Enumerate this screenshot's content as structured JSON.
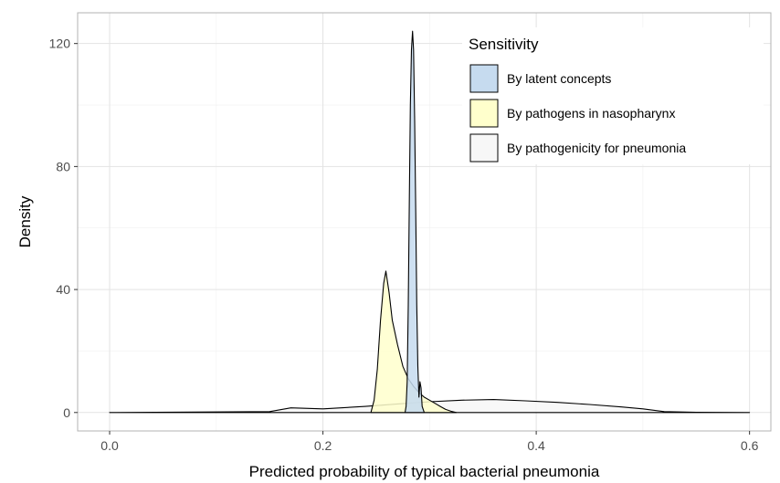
{
  "chart_data": {
    "type": "density",
    "title": "",
    "xlabel": "Predicted probability of typical bacterial pneumonia",
    "ylabel": "Density",
    "xlim": [
      -0.03,
      0.62
    ],
    "ylim": [
      -6,
      130
    ],
    "x_ticks": [
      0.0,
      0.2,
      0.4,
      0.6
    ],
    "x_tick_labels": [
      "0.0",
      "0.2",
      "0.4",
      "0.6"
    ],
    "y_ticks": [
      0,
      40,
      80,
      120
    ],
    "y_tick_labels": [
      "0",
      "40",
      "80",
      "120"
    ],
    "grid": true,
    "legend": {
      "title": "Sensitivity",
      "position": "top-right"
    },
    "series": [
      {
        "name": "By pathogenicity for pneumonia",
        "color": "#f7f7f7",
        "points": [
          [
            0.0,
            0
          ],
          [
            0.15,
            0.3
          ],
          [
            0.17,
            1.5
          ],
          [
            0.2,
            1.2
          ],
          [
            0.24,
            2.0
          ],
          [
            0.27,
            2.8
          ],
          [
            0.3,
            3.5
          ],
          [
            0.33,
            4.0
          ],
          [
            0.36,
            4.2
          ],
          [
            0.39,
            3.8
          ],
          [
            0.42,
            3.3
          ],
          [
            0.45,
            2.6
          ],
          [
            0.48,
            1.8
          ],
          [
            0.5,
            1.2
          ],
          [
            0.52,
            0.3
          ],
          [
            0.55,
            0.05
          ],
          [
            0.6,
            0
          ]
        ]
      },
      {
        "name": "By pathogens in nasopharynx",
        "color": "#ffffcc",
        "points": [
          [
            0.245,
            0
          ],
          [
            0.248,
            4
          ],
          [
            0.251,
            14
          ],
          [
            0.254,
            30
          ],
          [
            0.257,
            42
          ],
          [
            0.259,
            46
          ],
          [
            0.262,
            39
          ],
          [
            0.265,
            30
          ],
          [
            0.27,
            22
          ],
          [
            0.275,
            15
          ],
          [
            0.28,
            11
          ],
          [
            0.285,
            8.5
          ],
          [
            0.29,
            6.5
          ],
          [
            0.295,
            5
          ],
          [
            0.3,
            4
          ],
          [
            0.305,
            3
          ],
          [
            0.31,
            2
          ],
          [
            0.315,
            1
          ],
          [
            0.32,
            0.4
          ],
          [
            0.325,
            0
          ]
        ]
      },
      {
        "name": "By latent concepts",
        "color": "#c6dbef",
        "points": [
          [
            0.277,
            0
          ],
          [
            0.278,
            2
          ],
          [
            0.279,
            10
          ],
          [
            0.28,
            35
          ],
          [
            0.281,
            70
          ],
          [
            0.282,
            100
          ],
          [
            0.283,
            118
          ],
          [
            0.284,
            124
          ],
          [
            0.285,
            118
          ],
          [
            0.286,
            95
          ],
          [
            0.287,
            65
          ],
          [
            0.288,
            35
          ],
          [
            0.289,
            15
          ],
          [
            0.29,
            5
          ],
          [
            0.291,
            10
          ],
          [
            0.292,
            8
          ],
          [
            0.293,
            2
          ],
          [
            0.295,
            0
          ]
        ]
      }
    ]
  }
}
